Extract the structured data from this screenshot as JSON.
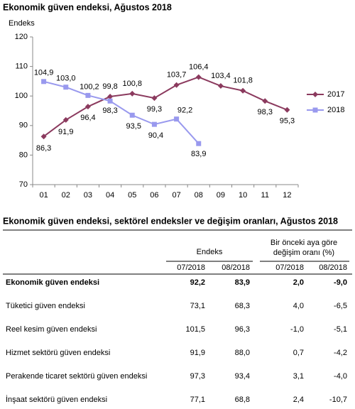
{
  "chart_data": {
    "type": "line",
    "title": "Ekonomik güven endeksi, Ağustos 2018",
    "y_label": "Endeks",
    "categories": [
      "01",
      "02",
      "03",
      "04",
      "05",
      "06",
      "07",
      "08",
      "09",
      "10",
      "11",
      "12"
    ],
    "series": [
      {
        "name": "2017",
        "color": "#8b3a5e",
        "marker": "diamond",
        "values": [
          86.3,
          91.9,
          96.4,
          99.8,
          100.8,
          99.3,
          103.7,
          106.4,
          103.4,
          101.8,
          98.3,
          95.3
        ],
        "value_labels": [
          "86,3",
          "91,9",
          "96,4",
          "99,8",
          "100,8",
          "99,3",
          "103,7",
          "106,4",
          "103,4",
          "101,8",
          "98,3",
          "95,3"
        ]
      },
      {
        "name": "2018",
        "color": "#9999ee",
        "marker": "square",
        "values": [
          104.9,
          103.0,
          100.2,
          98.3,
          93.5,
          90.4,
          92.2,
          83.9,
          null,
          null,
          null,
          null
        ],
        "value_labels": [
          "104,9",
          "103,0",
          "100,2",
          "98,3",
          "93,5",
          "90,4",
          "92,2",
          "83,9",
          null,
          null,
          null,
          null
        ]
      }
    ],
    "ylim": [
      70,
      120
    ],
    "yticks": [
      70,
      80,
      90,
      100,
      110,
      120
    ],
    "grid": false,
    "legend": "right"
  },
  "table": {
    "title": "Ekonomik güven endeksi, sektörel endeksler ve değişim oranları, Ağustos 2018",
    "group_headers": [
      "Endeks",
      "Bir önceki aya göre",
      "değişim oranı (%)"
    ],
    "columns": [
      "07/2018",
      "08/2018",
      "07/2018",
      "08/2018"
    ],
    "rows": [
      [
        "Ekonomik güven endeksi",
        "92,2",
        "83,9",
        "2,0",
        "-9,0"
      ],
      [
        "Tüketici güven endeksi",
        "73,1",
        "68,3",
        "4,0",
        "-6,5"
      ],
      [
        "Reel kesim güven endeksi",
        "101,5",
        "96,3",
        "-1,0",
        "-5,1"
      ],
      [
        "Hizmet sektörü güven endeksi",
        "91,9",
        "88,0",
        "0,7",
        "-4,2"
      ],
      [
        "Perakende ticaret sektörü güven endeksi",
        "97,3",
        "93,4",
        "3,1",
        "-4,0"
      ],
      [
        "İnşaat sektörü güven endeksi",
        "77,1",
        "68,8",
        "2,4",
        "-10,7"
      ]
    ]
  }
}
